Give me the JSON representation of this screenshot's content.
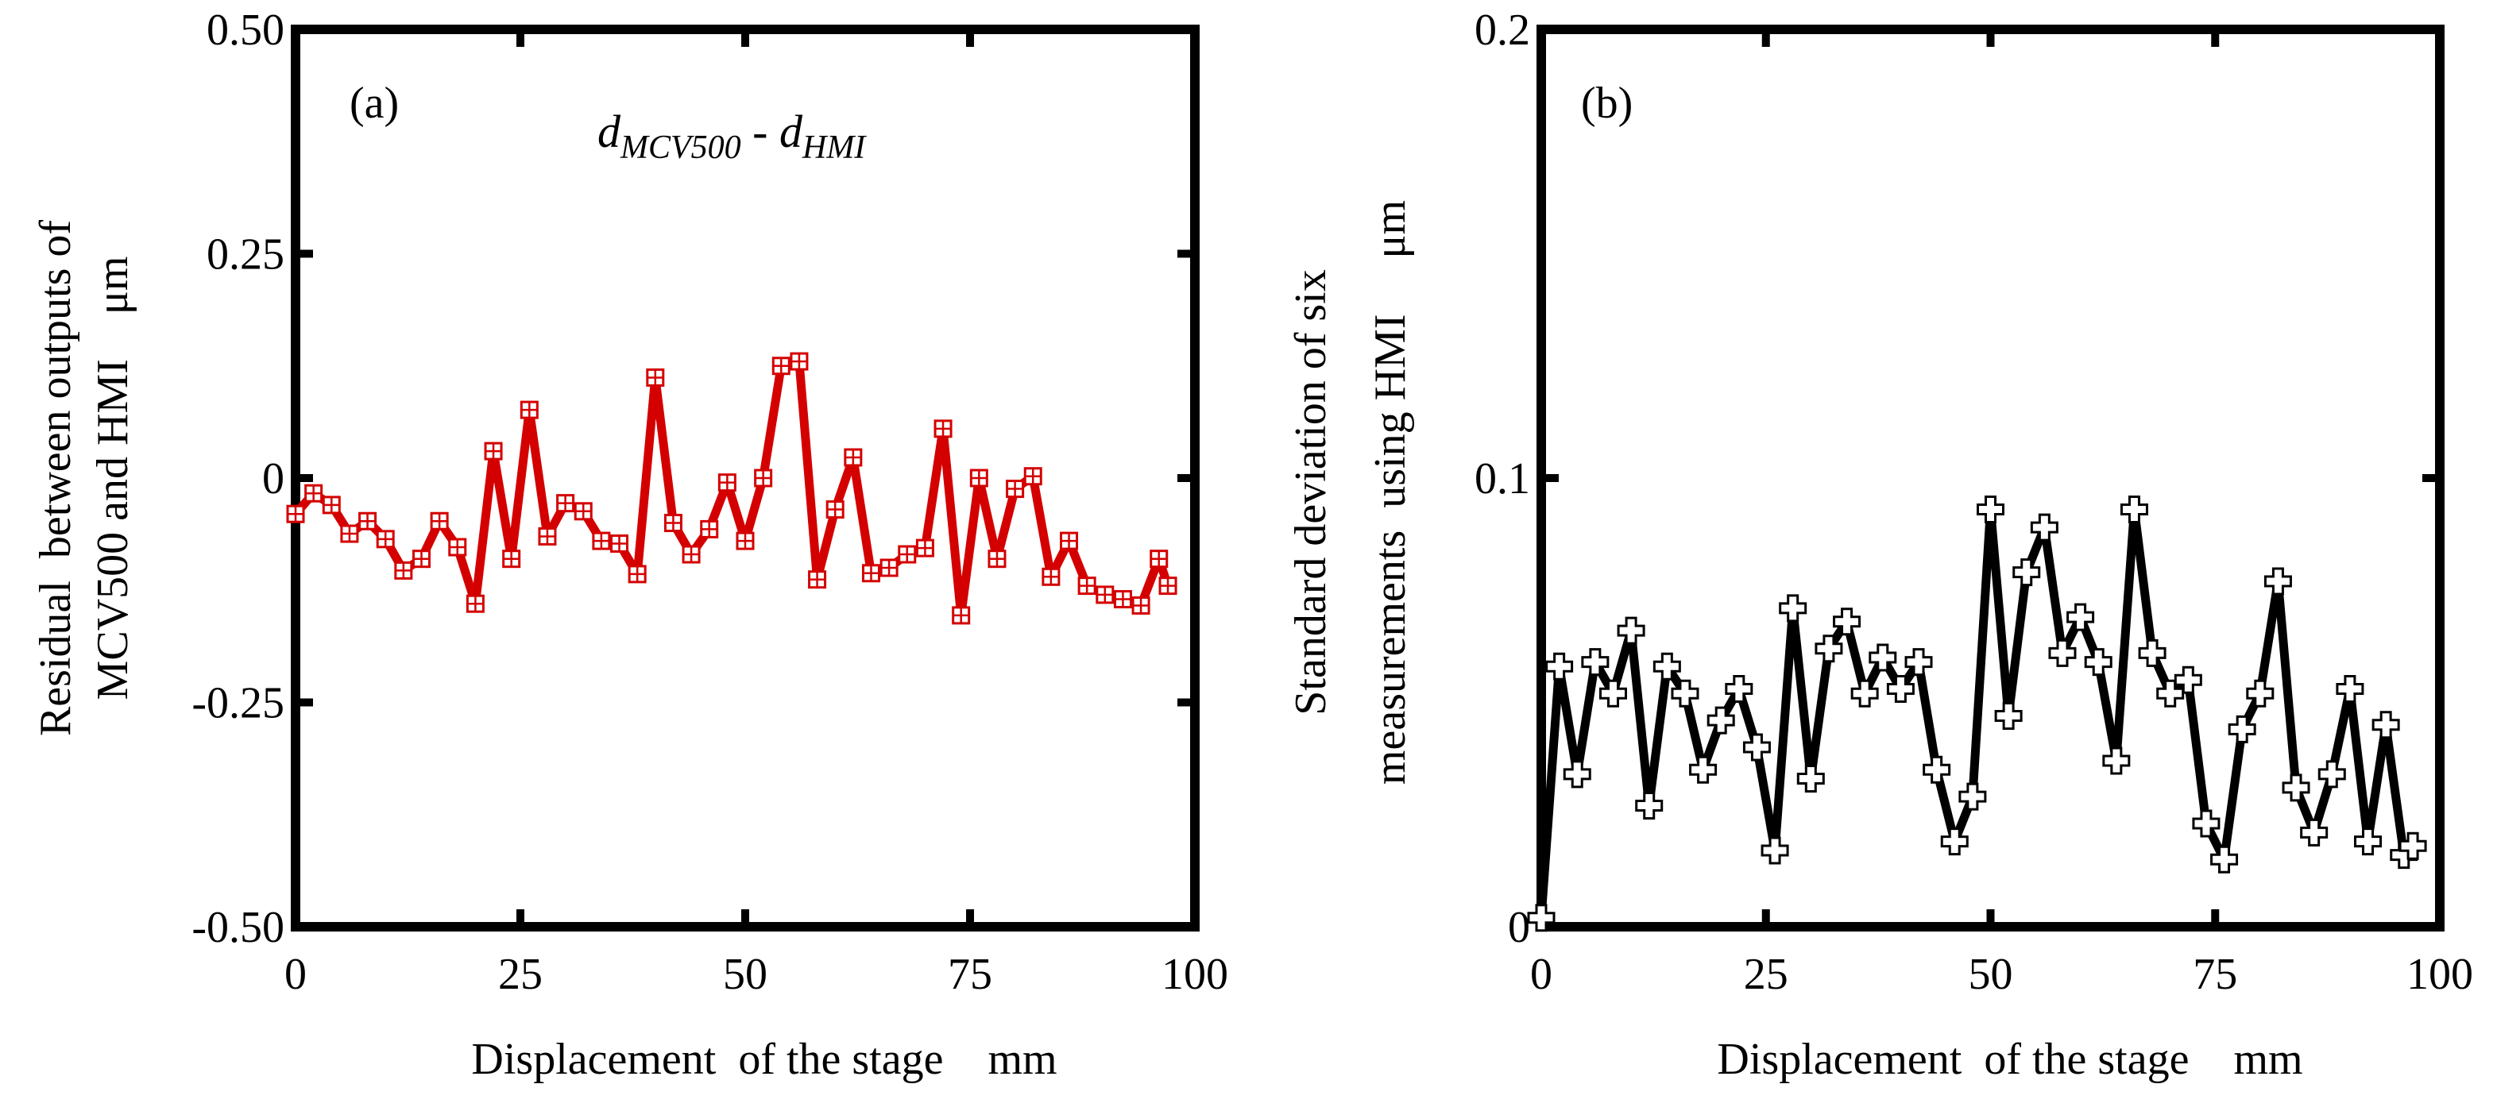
{
  "chart_data": [
    {
      "type": "line",
      "panel_label": "(a)",
      "annotation": "d_MCV500 - d_HMI",
      "annotation_parts": {
        "d1": "d",
        "s1": "MCV500",
        "sep": " - ",
        "d2": "d",
        "s2": "HMI"
      },
      "title": "",
      "xlabel": "Displacement  of the stage    mm",
      "ylabel_line1": "Residual  between outputs of",
      "ylabel_line2": "MCV500 and HMI    μm",
      "xlim": [
        0,
        100
      ],
      "ylim": [
        -0.5,
        0.5
      ],
      "xticks": [
        0,
        25,
        50,
        75,
        100
      ],
      "xtick_labels": [
        "0",
        "25",
        "50",
        "75",
        "100"
      ],
      "yticks": [
        -0.5,
        -0.25,
        0,
        0.25,
        0.5
      ],
      "ytick_labels": [
        "-0.50",
        "-0.25",
        "0",
        "0.25",
        "0.50"
      ],
      "grid": false,
      "color": "#d40000",
      "marker": "boxed-plus",
      "series": [
        {
          "name": "Residual",
          "x": [
            0,
            2,
            4,
            6,
            8,
            10,
            12,
            14,
            16,
            18,
            20,
            22,
            24,
            26,
            28,
            30,
            32,
            34,
            36,
            38,
            40,
            42,
            44,
            46,
            48,
            50,
            52,
            54,
            56,
            58,
            60,
            62,
            64,
            66,
            68,
            70,
            72,
            74,
            76,
            78,
            80,
            82,
            84,
            86,
            88,
            90,
            92,
            94,
            96,
            97
          ],
          "y": [
            -0.04,
            -0.017,
            -0.03,
            -0.062,
            -0.048,
            -0.068,
            -0.103,
            -0.09,
            -0.048,
            -0.077,
            -0.14,
            0.03,
            -0.09,
            0.076,
            -0.065,
            -0.028,
            -0.037,
            -0.07,
            -0.073,
            -0.107,
            0.112,
            -0.05,
            -0.085,
            -0.057,
            -0.005,
            -0.07,
            0.0,
            0.125,
            0.13,
            -0.113,
            -0.035,
            0.023,
            -0.106,
            -0.1,
            -0.085,
            -0.078,
            0.055,
            -0.153,
            0.0,
            -0.09,
            -0.012,
            0.002,
            -0.11,
            -0.07,
            -0.12,
            -0.13,
            -0.135,
            -0.142,
            -0.09,
            -0.12
          ]
        }
      ]
    },
    {
      "type": "line",
      "panel_label": "(b)",
      "title": "",
      "xlabel": "Displacement  of the stage    mm",
      "ylabel_line1": "Standard deviation of six",
      "ylabel_line2": "measurements  using HMI     μm",
      "xlim": [
        0,
        100
      ],
      "ylim": [
        0,
        0.2
      ],
      "xticks": [
        0,
        25,
        50,
        75,
        100
      ],
      "xtick_labels": [
        "0",
        "25",
        "50",
        "75",
        "100"
      ],
      "yticks": [
        0,
        0.1,
        0.2
      ],
      "ytick_labels": [
        "0",
        "0.1",
        "0.2"
      ],
      "grid": false,
      "color": "#000000",
      "marker": "open-cross",
      "series": [
        {
          "name": "Standard deviation",
          "x": [
            0,
            2,
            4,
            6,
            8,
            10,
            12,
            14,
            16,
            18,
            20,
            22,
            24,
            26,
            28,
            30,
            32,
            34,
            36,
            38,
            40,
            42,
            44,
            46,
            48,
            50,
            52,
            54,
            56,
            58,
            60,
            62,
            64,
            66,
            68,
            70,
            72,
            74,
            76,
            78,
            80,
            82,
            84,
            86,
            88,
            90,
            92,
            94,
            96,
            97
          ],
          "y": [
            0.002,
            0.058,
            0.034,
            0.059,
            0.052,
            0.066,
            0.027,
            0.058,
            0.052,
            0.035,
            0.046,
            0.053,
            0.04,
            0.017,
            0.071,
            0.033,
            0.062,
            0.068,
            0.052,
            0.06,
            0.053,
            0.059,
            0.035,
            0.019,
            0.029,
            0.093,
            0.047,
            0.079,
            0.089,
            0.061,
            0.069,
            0.059,
            0.037,
            0.093,
            0.061,
            0.052,
            0.055,
            0.023,
            0.015,
            0.044,
            0.052,
            0.077,
            0.031,
            0.021,
            0.034,
            0.053,
            0.019,
            0.045,
            0.016,
            0.018
          ]
        }
      ]
    }
  ]
}
